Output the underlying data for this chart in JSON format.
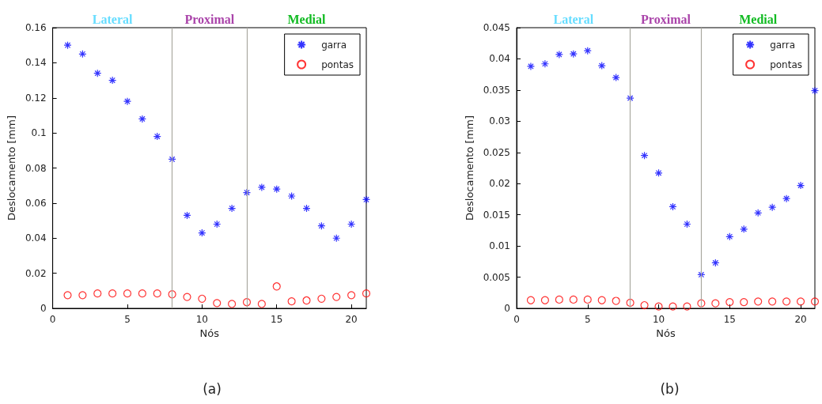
{
  "chart_data": [
    {
      "type": "scatter",
      "title": "(a)",
      "xlabel": "Nós",
      "ylabel": "Deslocamento [mm]",
      "annotations": [
        "Lateral",
        "Proximal",
        "Medial"
      ],
      "x": [
        1,
        2,
        3,
        4,
        5,
        6,
        7,
        8,
        9,
        10,
        11,
        12,
        13,
        14,
        15,
        16,
        17,
        18,
        19,
        20,
        21
      ],
      "xlim": [
        0,
        21
      ],
      "xticks": [
        0,
        5,
        10,
        15,
        20
      ],
      "ylim": [
        0,
        0.16
      ],
      "yticks": [
        0,
        0.02,
        0.04,
        0.06,
        0.08,
        0.1,
        0.12,
        0.14,
        0.16
      ],
      "grid": false,
      "legend": "top right",
      "ref_lines": [
        {
          "axis": "x",
          "value": 8,
          "color": "#aaa9a0"
        },
        {
          "axis": "x",
          "value": 13,
          "color": "#aaa9a0"
        }
      ],
      "series": [
        {
          "name": "garra",
          "color": "#0000ff",
          "marker": "cross",
          "values": [
            0.15,
            0.145,
            0.134,
            0.13,
            0.118,
            0.108,
            0.098,
            0.085,
            0.053,
            0.043,
            0.048,
            0.057,
            0.066,
            0.069,
            0.068,
            0.064,
            0.057,
            0.047,
            0.04,
            0.048,
            0.062
          ]
        },
        {
          "name": "pontas",
          "color": "#ff0000",
          "marker": "circle",
          "values": [
            0.0075,
            0.0075,
            0.0085,
            0.0085,
            0.0085,
            0.0085,
            0.0085,
            0.008,
            0.0065,
            0.0055,
            0.003,
            0.0025,
            0.0035,
            0.0025,
            0.0125,
            0.004,
            0.0045,
            0.0055,
            0.0065,
            0.0075,
            0.0085
          ]
        }
      ]
    },
    {
      "type": "scatter",
      "title": "(b)",
      "xlabel": "Nós",
      "ylabel": "Deslocamento [mm]",
      "annotations": [
        "Lateral",
        "Proximal",
        "Medial"
      ],
      "x": [
        1,
        2,
        3,
        4,
        5,
        6,
        7,
        8,
        9,
        10,
        11,
        12,
        13,
        14,
        15,
        16,
        17,
        18,
        19,
        20,
        21
      ],
      "xlim": [
        0,
        21
      ],
      "xticks": [
        0,
        5,
        10,
        15,
        20
      ],
      "ylim": [
        0,
        0.045
      ],
      "yticks": [
        0,
        0.005,
        0.01,
        0.015,
        0.02,
        0.025,
        0.03,
        0.035,
        0.04,
        0.045
      ],
      "grid": false,
      "legend": "top right",
      "ref_lines": [
        {
          "axis": "x",
          "value": 8,
          "color": "#aaa9a0"
        },
        {
          "axis": "x",
          "value": 13,
          "color": "#aaa9a0"
        }
      ],
      "series": [
        {
          "name": "garra",
          "color": "#0000ff",
          "marker": "cross",
          "values": [
            0.0388,
            0.0392,
            0.0407,
            0.0408,
            0.0413,
            0.0389,
            0.037,
            0.0337,
            0.0245,
            0.0217,
            0.0163,
            0.0135,
            0.0054,
            0.0073,
            0.0115,
            0.0127,
            0.0153,
            0.0162,
            0.0176,
            0.0197,
            0.0349
          ]
        },
        {
          "name": "pontas",
          "color": "#ff0000",
          "marker": "circle",
          "values": [
            0.0013,
            0.0013,
            0.0014,
            0.0014,
            0.0014,
            0.0013,
            0.0012,
            0.0009,
            0.0005,
            0.0003,
            0.0003,
            0.0003,
            0.0008,
            0.0008,
            0.001,
            0.001,
            0.0011,
            0.0011,
            0.0011,
            0.0011,
            0.0011
          ]
        }
      ]
    }
  ]
}
